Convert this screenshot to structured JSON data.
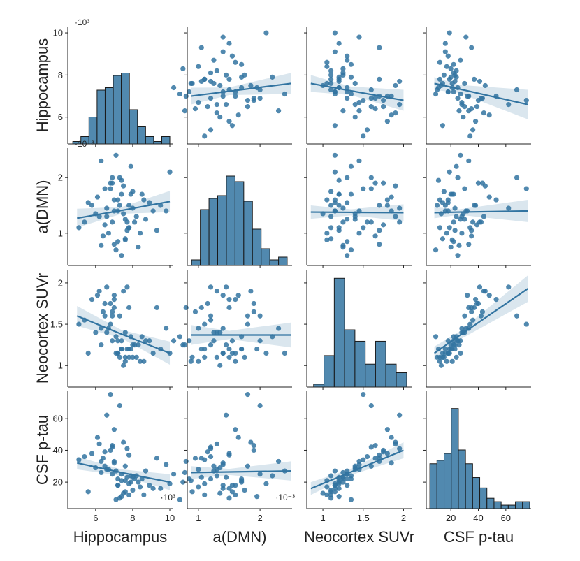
{
  "chart_data": {
    "type": "pairplot",
    "color": "#3274a1",
    "variables": [
      {
        "name": "Hippocampus",
        "scale": "·10³",
        "lim": [
          4.5,
          10.15
        ],
        "ticks": [
          6,
          8,
          10
        ],
        "plim": [
          4.73,
          10.3
        ],
        "pticks": [
          6,
          8,
          10
        ],
        "hist": {
          "bins": [
            4.77,
            5.206,
            5.642,
            6.078,
            6.514,
            6.95,
            7.386,
            7.822,
            8.258,
            8.694,
            9.13,
            9.566,
            10.0
          ],
          "counts": [
            1,
            3,
            11,
            22,
            23,
            28,
            29,
            14,
            7,
            3,
            1,
            3
          ],
          "ylim": [
            0,
            48
          ]
        },
        "values": [
          7.2,
          6.5,
          8.1,
          7.6,
          5.8,
          6.9,
          7.8,
          8.6,
          7.0,
          6.2,
          7.4,
          9.1,
          6.7,
          7.9,
          7.3,
          5.4,
          8.3,
          6.8,
          7.5,
          6.1,
          7.7,
          8.9,
          6.4,
          7.1,
          7.6,
          6.6,
          8.0,
          7.2,
          5.1,
          9.8,
          7.4,
          6.9,
          8.4,
          7.0,
          6.3,
          7.8,
          10.0,
          6.0,
          7.5,
          8.2,
          7.1,
          6.5,
          7.9,
          7.3,
          8.7,
          5.6,
          7.0,
          7.6,
          6.8,
          8.0,
          9.3,
          7.2,
          6.3,
          7.7,
          7.4,
          9.5,
          6.9,
          7.8,
          6.6,
          8.5
        ]
      },
      {
        "name": "a(DMN)",
        "scale": "·10⁻³",
        "lim": [
          0.82,
          2.52
        ],
        "ticks": [
          1,
          2
        ],
        "plim": [
          0.42,
          2.53
        ],
        "pticks": [
          1,
          2
        ],
        "hist": {
          "bins": [
            0.89,
            1.031,
            1.172,
            1.313,
            1.454,
            1.595,
            1.736,
            1.877,
            2.018,
            2.159,
            2.3,
            2.44
          ],
          "counts": [
            2,
            20,
            24,
            25,
            32,
            30,
            23,
            13,
            6,
            2,
            3
          ],
          "ylim": [
            0,
            42
          ]
        },
        "values": [
          1.4,
          1.8,
          1.2,
          0.9,
          1.5,
          2.0,
          1.1,
          1.6,
          0.8,
          1.3,
          1.7,
          1.4,
          1.0,
          2.2,
          1.5,
          1.2,
          0.75,
          1.9,
          1.35,
          1.65,
          1.05,
          1.55,
          0.95,
          2.4,
          1.25,
          1.45,
          1.75,
          0.85,
          1.1,
          1.4,
          1.95,
          1.2,
          1.0,
          1.6,
          0.78,
          1.5,
          2.1,
          1.35,
          1.85,
          1.3,
          0.7,
          1.15,
          1.7,
          2.0,
          1.25,
          1.55,
          1.4,
          0.88,
          1.8,
          1.45,
          1.05,
          1.6,
          2.3,
          1.2,
          0.6,
          1.5,
          1.9,
          1.1,
          1.3,
          1.7
        ]
      },
      {
        "name": "Neocortex SUVr",
        "lim": [
          0.8,
          2.1
        ],
        "ticks": [
          1,
          1.5,
          2
        ],
        "plim": [
          0.74,
          2.16
        ],
        "pticks": [
          1,
          1.5,
          2
        ],
        "hist": {
          "bins": [
            0.885,
            1.013,
            1.141,
            1.269,
            1.397,
            1.525,
            1.653,
            1.781,
            1.909,
            2.04
          ],
          "counts": [
            1,
            11,
            38,
            20,
            16,
            8,
            16,
            8,
            5
          ],
          "ylim": [
            0,
            41
          ]
        },
        "values": [
          1.15,
          1.6,
          1.25,
          1.1,
          1.8,
          1.3,
          1.2,
          1.05,
          1.7,
          1.9,
          1.2,
          1.15,
          1.45,
          1.35,
          1.1,
          1.55,
          1.25,
          1.75,
          1.0,
          1.85,
          1.2,
          1.3,
          1.65,
          1.15,
          1.4,
          1.95,
          1.1,
          1.3,
          1.5,
          1.45,
          1.2,
          1.6,
          1.05,
          1.8,
          1.25,
          1.7,
          1.15,
          1.4,
          1.9,
          1.1,
          1.35,
          1.75,
          1.2,
          1.6,
          1.3,
          1.15,
          1.85,
          1.05,
          1.5,
          1.25,
          1.7,
          1.15,
          1.45,
          1.95,
          1.3,
          1.2,
          1.65,
          1.1,
          1.4,
          1.35
        ]
      },
      {
        "name": "CSF p-tau",
        "lim": [
          2.1,
          78.4
        ],
        "ticks": [
          20,
          40,
          60
        ],
        "plim": [
          3.4,
          77
        ],
        "pticks": [
          20,
          40,
          60
        ],
        "hist": {
          "bins": [
            4.7,
            9.89,
            15.08,
            20.27,
            25.46,
            30.65,
            35.84,
            41.03,
            46.22,
            51.41,
            56.6,
            61.79,
            66.98,
            72.17,
            77.4
          ],
          "counts": [
            13,
            14,
            16,
            29,
            17,
            13,
            9,
            6,
            3,
            2,
            1,
            1,
            2,
            2
          ],
          "ylim": [
            0,
            34
          ]
        },
        "values": [
          18,
          30,
          22,
          14,
          38,
          25,
          19,
          12,
          33,
          44,
          21,
          16,
          28,
          24,
          10,
          36,
          20,
          40,
          13,
          48,
          23,
          18,
          35,
          27,
          30,
          62,
          15,
          22,
          34,
          31,
          11,
          42,
          17,
          53,
          26,
          37,
          19,
          29,
          45,
          24,
          9,
          39,
          20,
          68,
          27,
          14,
          32,
          21,
          75,
          23,
          35,
          18,
          33,
          41,
          25,
          16,
          43,
          12,
          28,
          22
        ]
      }
    ],
    "fits": [
      {
        "row": 0,
        "col": 1,
        "x": [
          0.88,
          1.5,
          2.5
        ],
        "y": [
          7.0,
          7.23,
          7.6
        ],
        "lo": [
          6.6,
          7.05,
          7.1
        ],
        "hi": [
          7.4,
          7.41,
          8.1
        ]
      },
      {
        "row": 0,
        "col": 2,
        "x": [
          0.85,
          1.35,
          2.0
        ],
        "y": [
          7.6,
          7.25,
          6.8
        ],
        "lo": [
          7.2,
          7.05,
          6.3
        ],
        "hi": [
          8.0,
          7.45,
          7.3
        ]
      },
      {
        "row": 0,
        "col": 3,
        "x": [
          8,
          26,
          76
        ],
        "y": [
          7.6,
          7.34,
          6.6
        ],
        "lo": [
          7.3,
          7.15,
          5.9
        ],
        "hi": [
          7.9,
          7.53,
          7.3
        ]
      },
      {
        "row": 1,
        "col": 0,
        "x": [
          5,
          7.4,
          10
        ],
        "y": [
          1.27,
          1.41,
          1.57
        ],
        "lo": [
          1.1,
          1.35,
          1.38
        ],
        "hi": [
          1.44,
          1.47,
          1.76
        ]
      },
      {
        "row": 1,
        "col": 2,
        "x": [
          0.85,
          1.35,
          2.0
        ],
        "y": [
          1.38,
          1.375,
          1.37
        ],
        "lo": [
          1.26,
          1.32,
          1.22
        ],
        "hi": [
          1.5,
          1.43,
          1.52
        ]
      },
      {
        "row": 1,
        "col": 3,
        "x": [
          8,
          26,
          76
        ],
        "y": [
          1.37,
          1.38,
          1.4
        ],
        "lo": [
          1.27,
          1.33,
          1.2
        ],
        "hi": [
          1.47,
          1.43,
          1.6
        ]
      },
      {
        "row": 2,
        "col": 0,
        "x": [
          5,
          7.4,
          10
        ],
        "y": [
          1.6,
          1.38,
          1.15
        ],
        "lo": [
          1.48,
          1.33,
          1.01
        ],
        "hi": [
          1.72,
          1.43,
          1.29
        ]
      },
      {
        "row": 2,
        "col": 1,
        "x": [
          0.88,
          1.5,
          2.5
        ],
        "y": [
          1.37,
          1.37,
          1.37
        ],
        "lo": [
          1.25,
          1.32,
          1.22
        ],
        "hi": [
          1.49,
          1.42,
          1.52
        ]
      },
      {
        "row": 2,
        "col": 3,
        "x": [
          8,
          26,
          76
        ],
        "y": [
          1.15,
          1.36,
          1.93
        ],
        "lo": [
          1.07,
          1.31,
          1.77
        ],
        "hi": [
          1.23,
          1.41,
          2.09
        ]
      },
      {
        "row": 3,
        "col": 0,
        "x": [
          5,
          7.4,
          10
        ],
        "y": [
          32,
          26,
          20
        ],
        "lo": [
          28,
          24,
          15
        ],
        "hi": [
          36,
          28,
          25
        ]
      },
      {
        "row": 3,
        "col": 1,
        "x": [
          0.88,
          1.5,
          2.5
        ],
        "y": [
          26,
          26.4,
          27
        ],
        "lo": [
          22,
          24.5,
          21
        ],
        "hi": [
          30,
          28.3,
          33
        ]
      },
      {
        "row": 3,
        "col": 2,
        "x": [
          0.85,
          1.35,
          2.0
        ],
        "y": [
          16,
          26.4,
          40
        ],
        "lo": [
          12,
          24.5,
          35
        ],
        "hi": [
          20,
          28.3,
          45
        ]
      }
    ]
  }
}
